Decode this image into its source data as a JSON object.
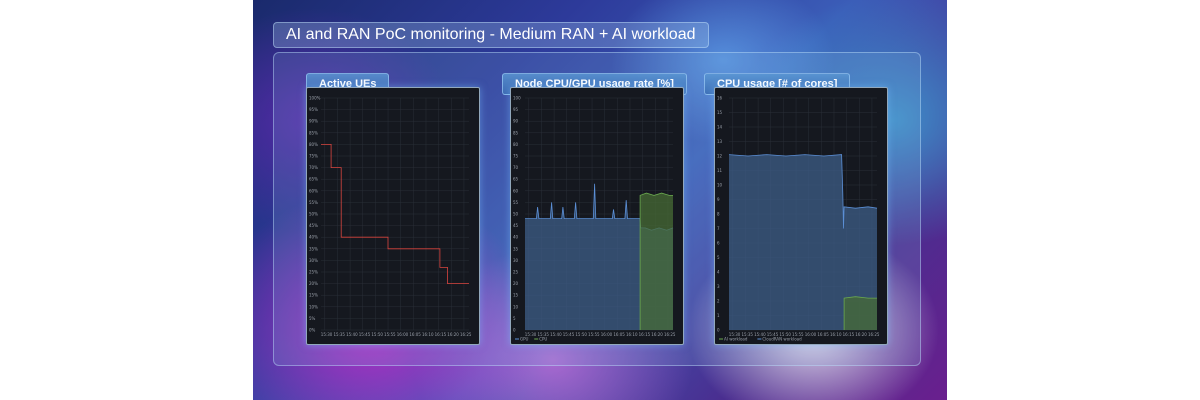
{
  "page": {
    "title": "AI and RAN PoC monitoring - Medium RAN + AI workload"
  },
  "panels": [
    {
      "label": "Active UEs"
    },
    {
      "label": "Node CPU/GPU usage rate [%]"
    },
    {
      "label": "CPU usage [# of cores]"
    }
  ],
  "colors": {
    "red_series": "#d9453f",
    "blue_series": "#5b8fd6",
    "blue_fill": "#3e5e88",
    "green_series": "#6aa84f",
    "green_fill": "#476b36",
    "grid": "#2a2f38"
  },
  "chart_data": [
    {
      "type": "line",
      "title": "Active UEs",
      "x": [
        "15:30",
        "15:35",
        "15:40",
        "15:45",
        "15:50",
        "15:55",
        "16:00",
        "16:05",
        "16:10",
        "16:15",
        "16:20",
        "16:25"
      ],
      "yticks": [
        "0%",
        "5%",
        "10%",
        "15%",
        "20%",
        "25%",
        "30%",
        "35%",
        "40%",
        "45%",
        "50%",
        "55%",
        "60%",
        "65%",
        "70%",
        "75%",
        "80%",
        "85%",
        "90%",
        "95%",
        "100%"
      ],
      "ylim": [
        0,
        100
      ],
      "grid": true,
      "series": [
        {
          "color": "#d9453f",
          "kind": "step",
          "points": [
            [
              0,
              80
            ],
            [
              0.8,
              80
            ],
            [
              0.8,
              70
            ],
            [
              1.6,
              70
            ],
            [
              1.6,
              40
            ],
            [
              5.3,
              40
            ],
            [
              5.3,
              35
            ],
            [
              9.4,
              35
            ],
            [
              9.4,
              27
            ],
            [
              10.0,
              27
            ],
            [
              10.0,
              20
            ],
            [
              11.7,
              20
            ]
          ]
        }
      ]
    },
    {
      "type": "area",
      "title": "Node CPU/GPU usage rate [%]",
      "x": [
        "15:30",
        "15:35",
        "15:40",
        "15:45",
        "15:50",
        "15:55",
        "16:00",
        "16:05",
        "16:10",
        "16:15",
        "16:20",
        "16:25"
      ],
      "yticks": [
        "0",
        "5",
        "10",
        "15",
        "20",
        "25",
        "30",
        "35",
        "40",
        "45",
        "50",
        "55",
        "60",
        "65",
        "70",
        "75",
        "80",
        "85",
        "90",
        "95",
        "100"
      ],
      "ylim": [
        0,
        100
      ],
      "grid": true,
      "legend": [
        "GPU",
        "CPU"
      ],
      "series": [
        {
          "name": "GPU",
          "color": "#5b8fd6",
          "points": [
            [
              0,
              48
            ],
            [
              0.9,
              48
            ],
            [
              1.0,
              53
            ],
            [
              1.1,
              48
            ],
            [
              2.0,
              48
            ],
            [
              2.1,
              55
            ],
            [
              2.2,
              48
            ],
            [
              2.9,
              48
            ],
            [
              3.0,
              53
            ],
            [
              3.1,
              48
            ],
            [
              3.9,
              48
            ],
            [
              4.0,
              55
            ],
            [
              4.1,
              48
            ],
            [
              5.4,
              48
            ],
            [
              5.5,
              63
            ],
            [
              5.6,
              48
            ],
            [
              6.9,
              48
            ],
            [
              7.0,
              52
            ],
            [
              7.1,
              48
            ],
            [
              7.9,
              48
            ],
            [
              8.0,
              56
            ],
            [
              8.1,
              48
            ],
            [
              9.1,
              48
            ],
            [
              9.15,
              44
            ],
            [
              9.5,
              44
            ],
            [
              10.0,
              43
            ],
            [
              10.6,
              44
            ],
            [
              11.2,
              43
            ],
            [
              11.7,
              44
            ]
          ]
        },
        {
          "name": "CPU",
          "color": "#6aa84f",
          "points": [
            [
              9.1,
              0
            ],
            [
              9.1,
              58
            ],
            [
              9.6,
              59
            ],
            [
              10.2,
              58
            ],
            [
              10.8,
              59
            ],
            [
              11.4,
              58
            ],
            [
              11.7,
              58
            ]
          ]
        }
      ]
    },
    {
      "type": "area",
      "title": "CPU usage [# of cores]",
      "x": [
        "15:30",
        "15:35",
        "15:40",
        "15:45",
        "15:50",
        "15:55",
        "16:00",
        "16:05",
        "16:10",
        "16:15",
        "16:20",
        "16:25"
      ],
      "yticks": [
        "0",
        "1",
        "2",
        "3",
        "4",
        "5",
        "6",
        "7",
        "8",
        "9",
        "10",
        "11",
        "12",
        "13",
        "14",
        "15",
        "16"
      ],
      "ylim": [
        0,
        16
      ],
      "grid": true,
      "legend": [
        "AI workload",
        "CloudRAN workload"
      ],
      "series": [
        {
          "name": "CloudRAN workload",
          "color": "#5b8fd6",
          "points": [
            [
              0,
              12.1
            ],
            [
              1.5,
              12.0
            ],
            [
              3.0,
              12.1
            ],
            [
              4.5,
              12.0
            ],
            [
              6.0,
              12.1
            ],
            [
              7.5,
              12.0
            ],
            [
              8.9,
              12.1
            ],
            [
              9.0,
              9.4
            ],
            [
              9.05,
              7.0
            ],
            [
              9.1,
              8.5
            ],
            [
              10.0,
              8.4
            ],
            [
              11.0,
              8.5
            ],
            [
              11.7,
              8.4
            ]
          ]
        },
        {
          "name": "AI workload",
          "color": "#6aa84f",
          "points": [
            [
              9.1,
              0
            ],
            [
              9.1,
              2.2
            ],
            [
              10.0,
              2.3
            ],
            [
              11.0,
              2.2
            ],
            [
              11.7,
              2.2
            ]
          ]
        }
      ]
    }
  ]
}
